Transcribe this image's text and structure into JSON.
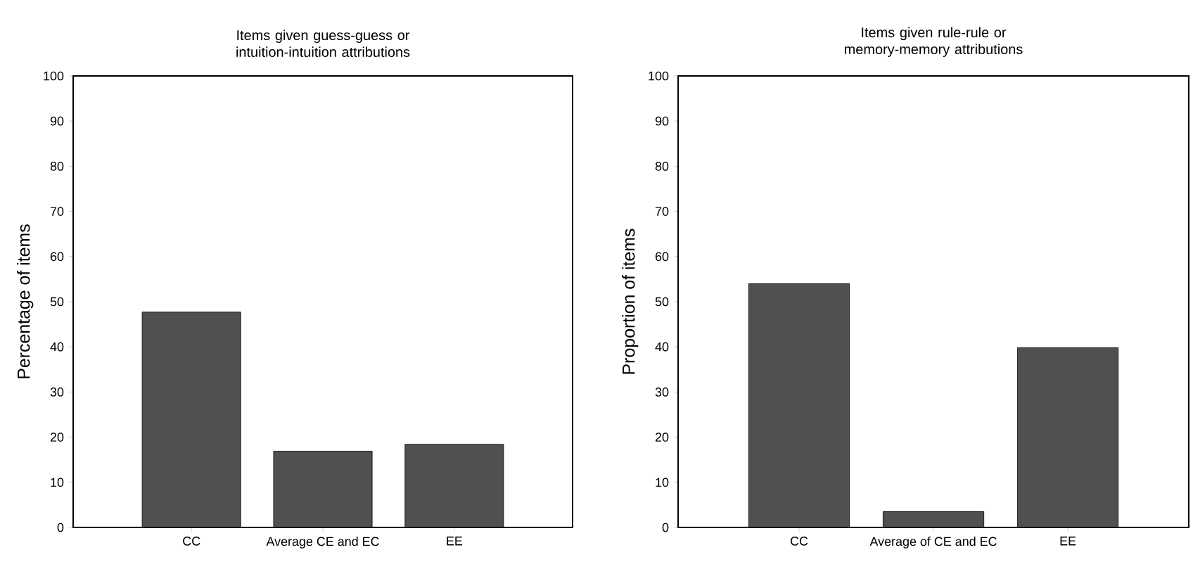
{
  "chart_data": [
    {
      "type": "bar",
      "title": "Items given guess-guess or intuition-intuition attributions",
      "ylabel": "Percentage of items",
      "categories": [
        "CC",
        "Average CE and EC",
        "EE"
      ],
      "values": [
        47.7,
        16.9,
        18.4
      ],
      "color": "#505050",
      "ylim": [
        0,
        100
      ],
      "yticks": [
        0,
        10,
        20,
        30,
        40,
        50,
        60,
        70,
        80,
        90,
        100
      ]
    },
    {
      "type": "bar",
      "title": "Items given rule-rule or memory-memory attributions",
      "ylabel": "Proportion of items",
      "categories": [
        "CC",
        "Average of CE and EC",
        "EE"
      ],
      "values": [
        54.0,
        3.5,
        39.8
      ],
      "color": "#505050",
      "ylim": [
        0,
        100
      ],
      "yticks": [
        0,
        10,
        20,
        30,
        40,
        50,
        60,
        70,
        80,
        90,
        100
      ]
    }
  ]
}
